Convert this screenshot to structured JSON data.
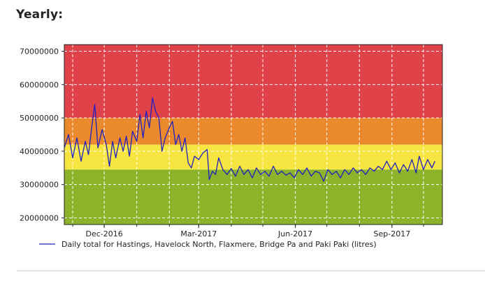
{
  "section": {
    "title": "Yearly:"
  },
  "chart_data": {
    "type": "line",
    "title": "",
    "xlabel": "",
    "ylabel": "",
    "ylim": [
      18000000,
      72000000
    ],
    "xlim": [
      "2016-10-24",
      "2017-10-19"
    ],
    "yticks": [
      20000000,
      30000000,
      40000000,
      50000000,
      60000000,
      70000000
    ],
    "ytick_labels": [
      "20000000",
      "30000000",
      "40000000",
      "50000000",
      "60000000",
      "70000000"
    ],
    "xticks": [
      {
        "label": "Dec-2016",
        "date": "2016-12-01"
      },
      {
        "label": "Mar-2017",
        "date": "2017-03-01"
      },
      {
        "label": "Jun-2017",
        "date": "2017-06-01"
      },
      {
        "label": "Sep-2017",
        "date": "2017-09-01"
      }
    ],
    "grid": true,
    "legend_position": "bottom",
    "bands": [
      {
        "from": 18000000,
        "to": 34500000,
        "color": "#8db32a"
      },
      {
        "from": 34500000,
        "to": 42000000,
        "color": "#f7e641"
      },
      {
        "from": 42000000,
        "to": 50000000,
        "color": "#ea8a2c"
      },
      {
        "from": 50000000,
        "to": 72000000,
        "color": "#e0424a"
      }
    ],
    "series": [
      {
        "name": "Daily total for Hastings, Havelock North, Flaxmere, Bridge Pa and Paki Paki (litres)",
        "color": "#1f1fbf",
        "points": [
          [
            "2016-10-24",
            41000000
          ],
          [
            "2016-10-28",
            45000000
          ],
          [
            "2016-11-01",
            38000000
          ],
          [
            "2016-11-05",
            44000000
          ],
          [
            "2016-11-09",
            37000000
          ],
          [
            "2016-11-13",
            43000000
          ],
          [
            "2016-11-16",
            39000000
          ],
          [
            "2016-11-19",
            47000000
          ],
          [
            "2016-11-22",
            54000000
          ],
          [
            "2016-11-25",
            41000000
          ],
          [
            "2016-11-29",
            46500000
          ],
          [
            "2016-12-03",
            42000000
          ],
          [
            "2016-12-06",
            35500000
          ],
          [
            "2016-12-09",
            43000000
          ],
          [
            "2016-12-12",
            38000000
          ],
          [
            "2016-12-16",
            44000000
          ],
          [
            "2016-12-19",
            40000000
          ],
          [
            "2016-12-22",
            44500000
          ],
          [
            "2016-12-25",
            38500000
          ],
          [
            "2016-12-28",
            46000000
          ],
          [
            "2017-01-01",
            43000000
          ],
          [
            "2017-01-04",
            51000000
          ],
          [
            "2017-01-07",
            44000000
          ],
          [
            "2017-01-10",
            52000000
          ],
          [
            "2017-01-13",
            47000000
          ],
          [
            "2017-01-16",
            56000000
          ],
          [
            "2017-01-19",
            52000000
          ],
          [
            "2017-01-22",
            50000000
          ],
          [
            "2017-01-25",
            40000000
          ],
          [
            "2017-01-28",
            44000000
          ],
          [
            "2017-02-01",
            47000000
          ],
          [
            "2017-02-04",
            49000000
          ],
          [
            "2017-02-07",
            42000000
          ],
          [
            "2017-02-10",
            45000000
          ],
          [
            "2017-02-13",
            40000000
          ],
          [
            "2017-02-16",
            44000000
          ],
          [
            "2017-02-19",
            36500000
          ],
          [
            "2017-02-22",
            35000000
          ],
          [
            "2017-02-25",
            38500000
          ],
          [
            "2017-03-01",
            37500000
          ],
          [
            "2017-03-05",
            39500000
          ],
          [
            "2017-03-09",
            40500000
          ],
          [
            "2017-03-11",
            31500000
          ],
          [
            "2017-03-14",
            34000000
          ],
          [
            "2017-03-17",
            33000000
          ],
          [
            "2017-03-20",
            38000000
          ],
          [
            "2017-03-24",
            34500000
          ],
          [
            "2017-03-28",
            33000000
          ],
          [
            "2017-04-01",
            34800000
          ],
          [
            "2017-04-05",
            32500000
          ],
          [
            "2017-04-09",
            35500000
          ],
          [
            "2017-04-13",
            33000000
          ],
          [
            "2017-04-17",
            34500000
          ],
          [
            "2017-04-21",
            32000000
          ],
          [
            "2017-04-25",
            35000000
          ],
          [
            "2017-04-29",
            33000000
          ],
          [
            "2017-05-03",
            34000000
          ],
          [
            "2017-05-07",
            32500000
          ],
          [
            "2017-05-11",
            35500000
          ],
          [
            "2017-05-15",
            33000000
          ],
          [
            "2017-05-19",
            34000000
          ],
          [
            "2017-05-23",
            32800000
          ],
          [
            "2017-05-27",
            33500000
          ],
          [
            "2017-05-31",
            32000000
          ],
          [
            "2017-06-04",
            34500000
          ],
          [
            "2017-06-08",
            33000000
          ],
          [
            "2017-06-12",
            35000000
          ],
          [
            "2017-06-16",
            32500000
          ],
          [
            "2017-06-20",
            34000000
          ],
          [
            "2017-06-24",
            33500000
          ],
          [
            "2017-06-28",
            31000000
          ],
          [
            "2017-07-02",
            34500000
          ],
          [
            "2017-07-06",
            33000000
          ],
          [
            "2017-07-10",
            34000000
          ],
          [
            "2017-07-14",
            32000000
          ],
          [
            "2017-07-18",
            34500000
          ],
          [
            "2017-07-22",
            33000000
          ],
          [
            "2017-07-26",
            35000000
          ],
          [
            "2017-07-30",
            33500000
          ],
          [
            "2017-08-03",
            34500000
          ],
          [
            "2017-08-07",
            33000000
          ],
          [
            "2017-08-11",
            35000000
          ],
          [
            "2017-08-15",
            34000000
          ],
          [
            "2017-08-19",
            35500000
          ],
          [
            "2017-08-23",
            34500000
          ],
          [
            "2017-08-27",
            37000000
          ],
          [
            "2017-08-31",
            34500000
          ],
          [
            "2017-09-04",
            36500000
          ],
          [
            "2017-09-08",
            33500000
          ],
          [
            "2017-09-12",
            36000000
          ],
          [
            "2017-09-16",
            34000000
          ],
          [
            "2017-09-20",
            37500000
          ],
          [
            "2017-09-24",
            33500000
          ],
          [
            "2017-09-27",
            38500000
          ],
          [
            "2017-10-01",
            34500000
          ],
          [
            "2017-10-05",
            37500000
          ],
          [
            "2017-10-09",
            35000000
          ],
          [
            "2017-10-12",
            37000000
          ]
        ]
      }
    ]
  }
}
